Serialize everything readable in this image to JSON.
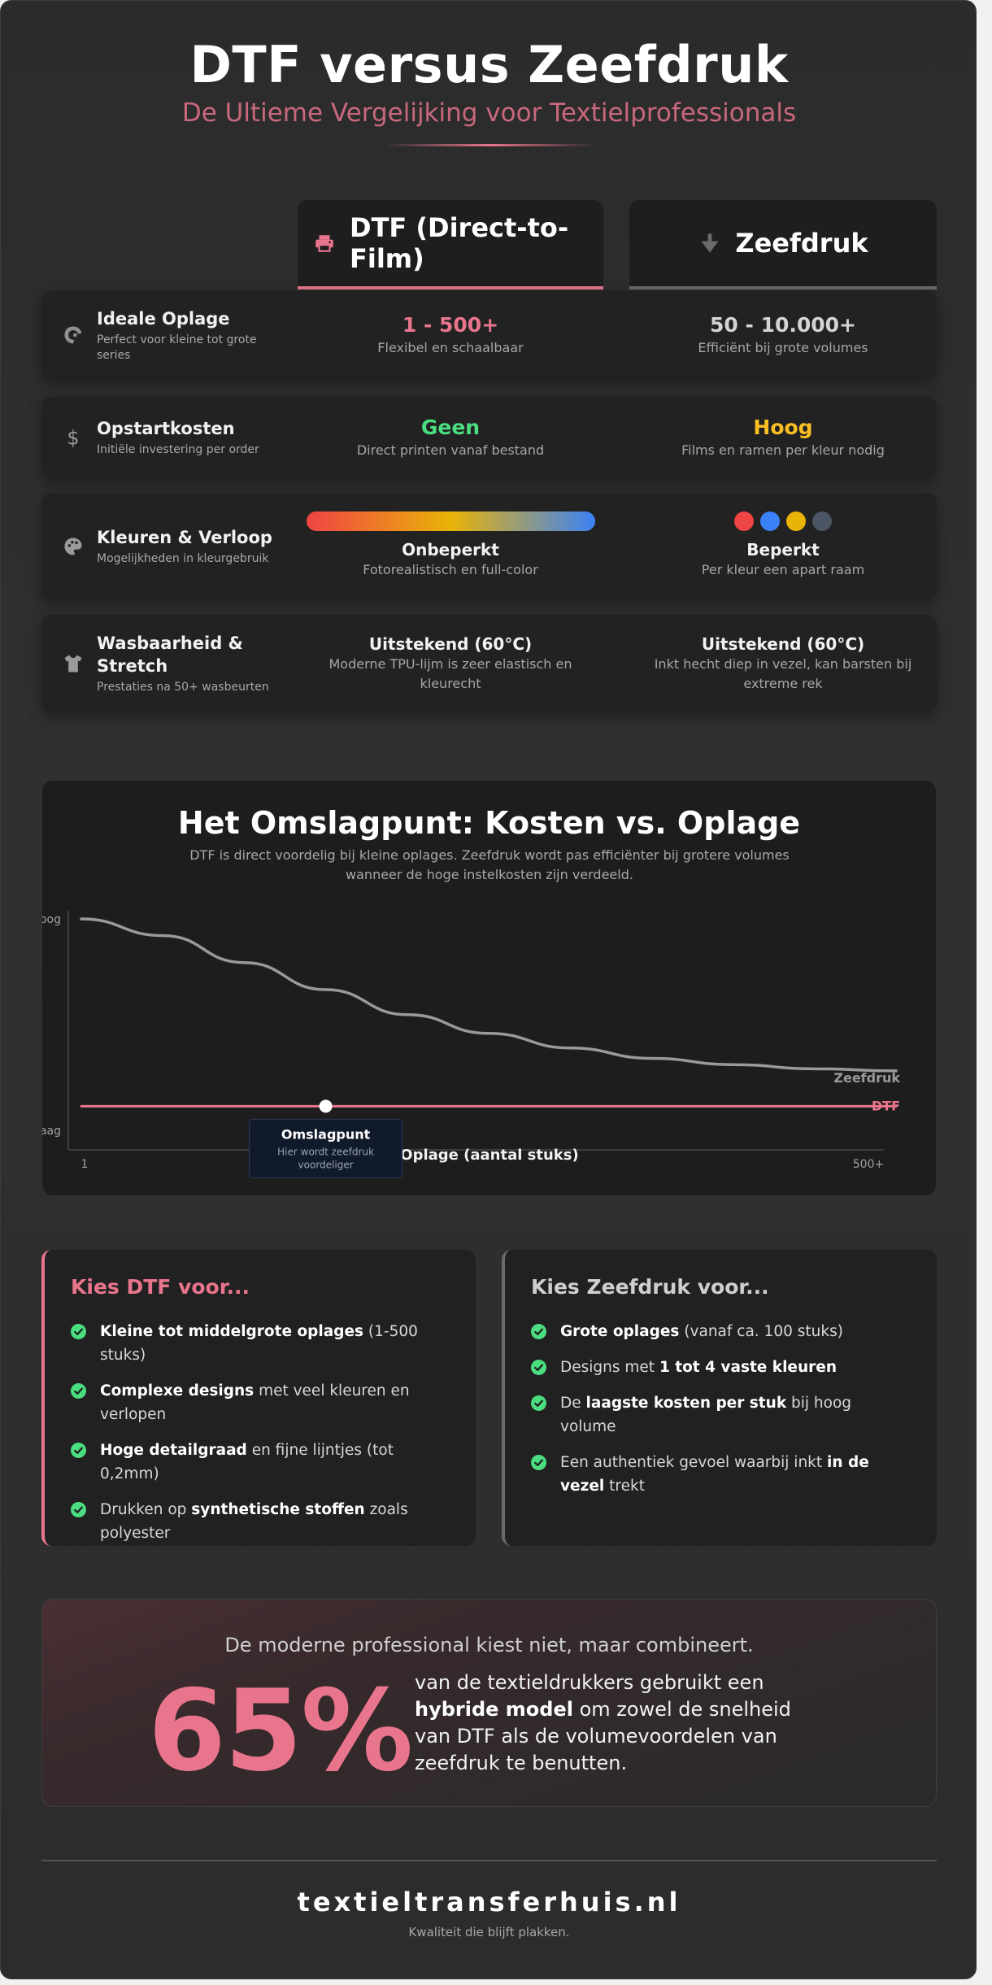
{
  "header": {
    "title": "DTF versus Zeefdruk",
    "subtitle": "De Ultieme Vergelijking voor Textielprofessionals"
  },
  "columns": {
    "dtf": {
      "label": "DTF (Direct-to-Film)",
      "icon": "printer-icon",
      "accent": "#e8758c"
    },
    "zeefdruk": {
      "label": "Zeefdruk",
      "icon": "squeegee-icon",
      "accent": "#6b6b6b"
    }
  },
  "comparison": [
    {
      "icon": "dragon-icon",
      "label": "Ideale Oplage",
      "desc": "Perfect voor kleine tot grote series",
      "dtf": {
        "value": "1 - 500+",
        "note": "Flexibel en schaalbaar",
        "color": "#e8758c"
      },
      "zeefdruk": {
        "value": "50 - 10.000+",
        "note": "Efficiënt bij grote volumes",
        "color": "#d4d4d4"
      }
    },
    {
      "icon": "dollar-icon",
      "label": "Opstartkosten",
      "desc": "Initiële investering per order",
      "dtf": {
        "value": "Geen",
        "note": "Direct printen vanaf bestand",
        "color": "#4ade80"
      },
      "zeefdruk": {
        "value": "Hoog",
        "note": "Films en ramen per kleur nodig",
        "color": "#fbbf24"
      }
    },
    {
      "icon": "palette-icon",
      "label": "Kleuren & Verloop",
      "desc": "Mogelijkheden in kleurgebruik",
      "dtf": {
        "value": "Onbeperkt",
        "note": "Fotorealistisch en full-color",
        "gradient": [
          "#ef4444",
          "#eab308",
          "#3b82f6"
        ]
      },
      "zeefdruk": {
        "value": "Beperkt",
        "note": "Per kleur een apart raam",
        "dots": [
          "#ef4444",
          "#3b82f6",
          "#eab308",
          "#4b5563"
        ]
      }
    },
    {
      "icon": "shirt-icon",
      "label": "Wasbaarheid & Stretch",
      "desc": "Prestaties na 50+ wasbeurten",
      "dtf": {
        "value": "Uitstekend (60°C)",
        "note": "Moderne TPU-lijm is zeer elastisch en kleurecht"
      },
      "zeefdruk": {
        "value": "Uitstekend (60°C)",
        "note": "Inkt hecht diep in vezel, kan barsten bij extreme rek"
      }
    }
  ],
  "chart_data": {
    "type": "line",
    "title": "Het Omslagpunt: Kosten vs. Oplage",
    "subtitle": "DTF is direct voordelig bij kleine oplages. Zeefdruk wordt pas efficiënter bij grotere volumes wanneer de hoge instelkosten zijn verdeeld.",
    "xlabel": "Oplage (aantal stuks)",
    "x_tick_labels": [
      "1",
      "500+"
    ],
    "y_tick_labels": [
      "Laag",
      "Hoog"
    ],
    "xlim": [
      0,
      1
    ],
    "ylim": [
      0,
      1
    ],
    "x": [
      0,
      0.1,
      0.2,
      0.3,
      0.4,
      0.5,
      0.6,
      0.7,
      0.8,
      0.9,
      1.0
    ],
    "series": [
      {
        "name": "Zeefdruk",
        "color": "#9a9a9a",
        "values": [
          1.0,
          0.92,
          0.79,
          0.66,
          0.54,
          0.45,
          0.38,
          0.33,
          0.3,
          0.28,
          0.27
        ]
      },
      {
        "name": "DTF",
        "color": "#e8758c",
        "values": [
          0.1,
          0.1,
          0.1,
          0.1,
          0.1,
          0.1,
          0.1,
          0.1,
          0.1,
          0.1,
          0.1
        ]
      }
    ],
    "annotation": {
      "label": "Omslagpunt",
      "text": "Hier wordt zeefdruk voordeliger",
      "x": 0.3,
      "y": 0.1
    },
    "grid": false,
    "legend": "inline-right"
  },
  "recommendations": {
    "dtf": {
      "title": "Kies DTF voor...",
      "items": [
        {
          "bold": "Kleine tot middelgrote oplages",
          "rest": " (1-500 stuks)"
        },
        {
          "bold": "Complexe designs",
          "rest": " met veel kleuren en verlopen"
        },
        {
          "bold": "Hoge detailgraad",
          "rest": " en fijne lijntjes (tot 0,2mm)"
        },
        {
          "pre": "Drukken op ",
          "bold": "synthetische stoffen",
          "rest": " zoals polyester"
        }
      ]
    },
    "zeefdruk": {
      "title": "Kies Zeefdruk voor...",
      "items": [
        {
          "bold": "Grote oplages",
          "rest": " (vanaf ca. 100 stuks)"
        },
        {
          "pre": "Designs met ",
          "bold": "1 tot 4 vaste kleuren",
          "rest": ""
        },
        {
          "pre": "De ",
          "bold": "laagste kosten per stuk",
          "rest": " bij hoog volume"
        },
        {
          "pre": "Een authentiek gevoel waarbij inkt ",
          "bold": "in de vezel",
          "rest": " trekt"
        }
      ]
    }
  },
  "stat": {
    "lead": "De moderne professional kiest niet, maar combineert.",
    "value": "65%",
    "pre": "van de textieldrukkers gebruikt een ",
    "bold": "hybride model",
    "rest": " om zowel de snelheid van DTF als de volumevoordelen van zeefdruk te benutten."
  },
  "footer": {
    "brand": "textieltransferhuis.nl",
    "tagline": "Kwaliteit die blijft plakken."
  }
}
